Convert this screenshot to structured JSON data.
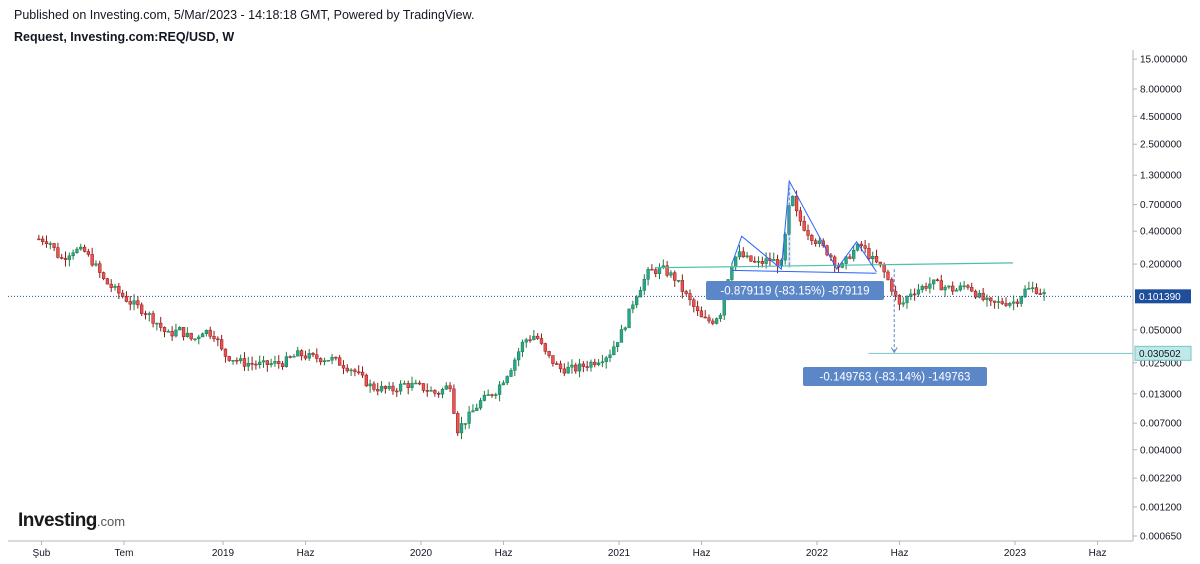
{
  "header": {
    "published": "Published on Investing.com, 5/Mar/2023 - 14:18:18 GMT, Powered by TradingView.",
    "symbol": "Request, Investing.com:REQ/USD, W"
  },
  "logo": {
    "main": "Investing",
    "suffix": ".com"
  },
  "colors": {
    "up": "#26a69a",
    "down": "#ef5350",
    "upDark": "#1e7d3a",
    "downDark": "#8b1a1a",
    "measure": "#5b86c8",
    "pattern": "#2962ff",
    "trend": "#4dc0a8",
    "lastPrice": "#1f4e9c",
    "support": "#73c6c6"
  },
  "chart_data": {
    "type": "candlestick",
    "yscale": "log",
    "yTicks": [
      {
        "v": 15.0,
        "label": "15.000000"
      },
      {
        "v": 8.0,
        "label": "8.000000"
      },
      {
        "v": 4.5,
        "label": "4.500000"
      },
      {
        "v": 2.5,
        "label": "2.500000"
      },
      {
        "v": 1.3,
        "label": "1.300000"
      },
      {
        "v": 0.7,
        "label": "0.700000"
      },
      {
        "v": 0.4,
        "label": "0.400000"
      },
      {
        "v": 0.2,
        "label": "0.200000"
      },
      {
        "v": 0.05,
        "label": "0.050000"
      },
      {
        "v": 0.025,
        "label": "0.025000"
      },
      {
        "v": 0.013,
        "label": "0.013000"
      },
      {
        "v": 0.007,
        "label": "0.007000"
      },
      {
        "v": 0.004,
        "label": "0.004000"
      },
      {
        "v": 0.0022,
        "label": "0.002200"
      },
      {
        "v": 0.0012,
        "label": "0.001200"
      },
      {
        "v": 0.00065,
        "label": "0.000650"
      }
    ],
    "xTicks": [
      {
        "t": 2018.083,
        "label": "Şub"
      },
      {
        "t": 2018.5,
        "label": "Tem"
      },
      {
        "t": 2019.0,
        "label": "2019"
      },
      {
        "t": 2019.417,
        "label": "Haz"
      },
      {
        "t": 2020.0,
        "label": "2020"
      },
      {
        "t": 2020.417,
        "label": "Haz"
      },
      {
        "t": 2021.0,
        "label": "2021"
      },
      {
        "t": 2021.417,
        "label": "Haz"
      },
      {
        "t": 2022.0,
        "label": "2022"
      },
      {
        "t": 2022.417,
        "label": "Haz"
      },
      {
        "t": 2023.0,
        "label": "2023"
      },
      {
        "t": 2023.417,
        "label": "Haz"
      }
    ],
    "priceAnchors": [
      [
        2018.07,
        0.34
      ],
      [
        2018.12,
        0.33
      ],
      [
        2018.18,
        0.22
      ],
      [
        2018.24,
        0.27
      ],
      [
        2018.3,
        0.26
      ],
      [
        2018.35,
        0.2
      ],
      [
        2018.4,
        0.14
      ],
      [
        2018.47,
        0.11
      ],
      [
        2018.53,
        0.09
      ],
      [
        2018.6,
        0.075
      ],
      [
        2018.66,
        0.06
      ],
      [
        2018.72,
        0.045
      ],
      [
        2018.78,
        0.05
      ],
      [
        2018.85,
        0.04
      ],
      [
        2018.9,
        0.05
      ],
      [
        2018.96,
        0.045
      ],
      [
        2019.0,
        0.03
      ],
      [
        2019.1,
        0.025
      ],
      [
        2019.2,
        0.024
      ],
      [
        2019.3,
        0.025
      ],
      [
        2019.38,
        0.03
      ],
      [
        2019.45,
        0.028
      ],
      [
        2019.55,
        0.027
      ],
      [
        2019.65,
        0.022
      ],
      [
        2019.75,
        0.015
      ],
      [
        2019.85,
        0.014
      ],
      [
        2019.92,
        0.016
      ],
      [
        2020.0,
        0.015
      ],
      [
        2020.08,
        0.013
      ],
      [
        2020.15,
        0.016
      ],
      [
        2020.18,
        0.006
      ],
      [
        2020.24,
        0.008
      ],
      [
        2020.3,
        0.011
      ],
      [
        2020.38,
        0.014
      ],
      [
        2020.45,
        0.022
      ],
      [
        2020.52,
        0.04
      ],
      [
        2020.58,
        0.045
      ],
      [
        2020.63,
        0.03
      ],
      [
        2020.7,
        0.022
      ],
      [
        2020.78,
        0.022
      ],
      [
        2020.86,
        0.025
      ],
      [
        2020.95,
        0.03
      ],
      [
        2021.02,
        0.05
      ],
      [
        2021.08,
        0.1
      ],
      [
        2021.15,
        0.17
      ],
      [
        2021.22,
        0.18
      ],
      [
        2021.28,
        0.15
      ],
      [
        2021.36,
        0.09
      ],
      [
        2021.42,
        0.062
      ],
      [
        2021.47,
        0.06
      ],
      [
        2021.52,
        0.075
      ],
      [
        2021.56,
        0.19
      ],
      [
        2021.6,
        0.25
      ],
      [
        2021.65,
        0.22
      ],
      [
        2021.7,
        0.2
      ],
      [
        2021.76,
        0.22
      ],
      [
        2021.82,
        0.2
      ],
      [
        2021.87,
        0.9
      ],
      [
        2021.9,
        0.55
      ],
      [
        2021.95,
        0.4
      ],
      [
        2022.0,
        0.32
      ],
      [
        2022.06,
        0.25
      ],
      [
        2022.12,
        0.18
      ],
      [
        2022.17,
        0.25
      ],
      [
        2022.22,
        0.3
      ],
      [
        2022.28,
        0.22
      ],
      [
        2022.33,
        0.18
      ],
      [
        2022.37,
        0.13
      ],
      [
        2022.42,
        0.08
      ],
      [
        2022.47,
        0.11
      ],
      [
        2022.52,
        0.12
      ],
      [
        2022.58,
        0.135
      ],
      [
        2022.64,
        0.125
      ],
      [
        2022.7,
        0.115
      ],
      [
        2022.76,
        0.13
      ],
      [
        2022.82,
        0.1
      ],
      [
        2022.88,
        0.085
      ],
      [
        2022.94,
        0.09
      ],
      [
        2023.0,
        0.09
      ],
      [
        2023.05,
        0.115
      ],
      [
        2023.1,
        0.12
      ],
      [
        2023.15,
        0.105
      ]
    ],
    "lastPrice": {
      "value": 0.10139,
      "label": "0.101390"
    },
    "support": {
      "value": 0.030502,
      "label": "0.030502"
    },
    "annotations": [
      {
        "text": "-0.879119 (-83.15%) -879119"
      },
      {
        "text": "-0.149763 (-83.14%) -149763"
      }
    ]
  }
}
